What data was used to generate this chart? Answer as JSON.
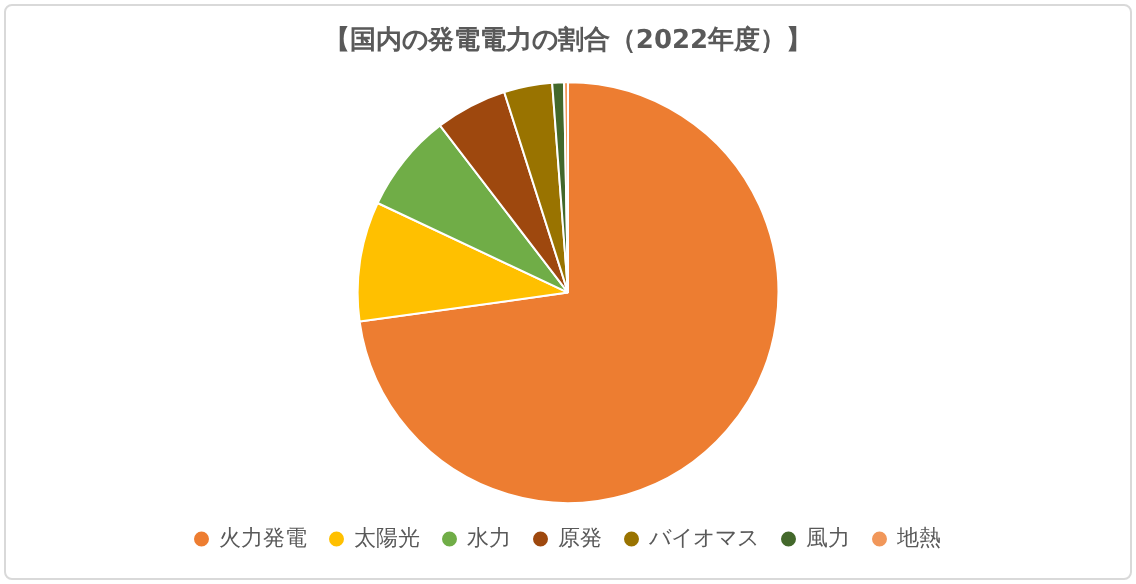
{
  "chart_data": {
    "type": "pie",
    "title": "【国内の発電電力の割合（2022年度）】",
    "categories": [
      "火力発電",
      "太陽光",
      "水力",
      "原発",
      "バイオマス",
      "風力",
      "地熱"
    ],
    "values": [
      72.8,
      9.2,
      7.6,
      5.5,
      3.7,
      0.9,
      0.3
    ],
    "colors": [
      "#ed7d31",
      "#ffc000",
      "#70ad47",
      "#9e480e",
      "#997300",
      "#43682b",
      "#f1975a"
    ],
    "legend": "bottom"
  }
}
